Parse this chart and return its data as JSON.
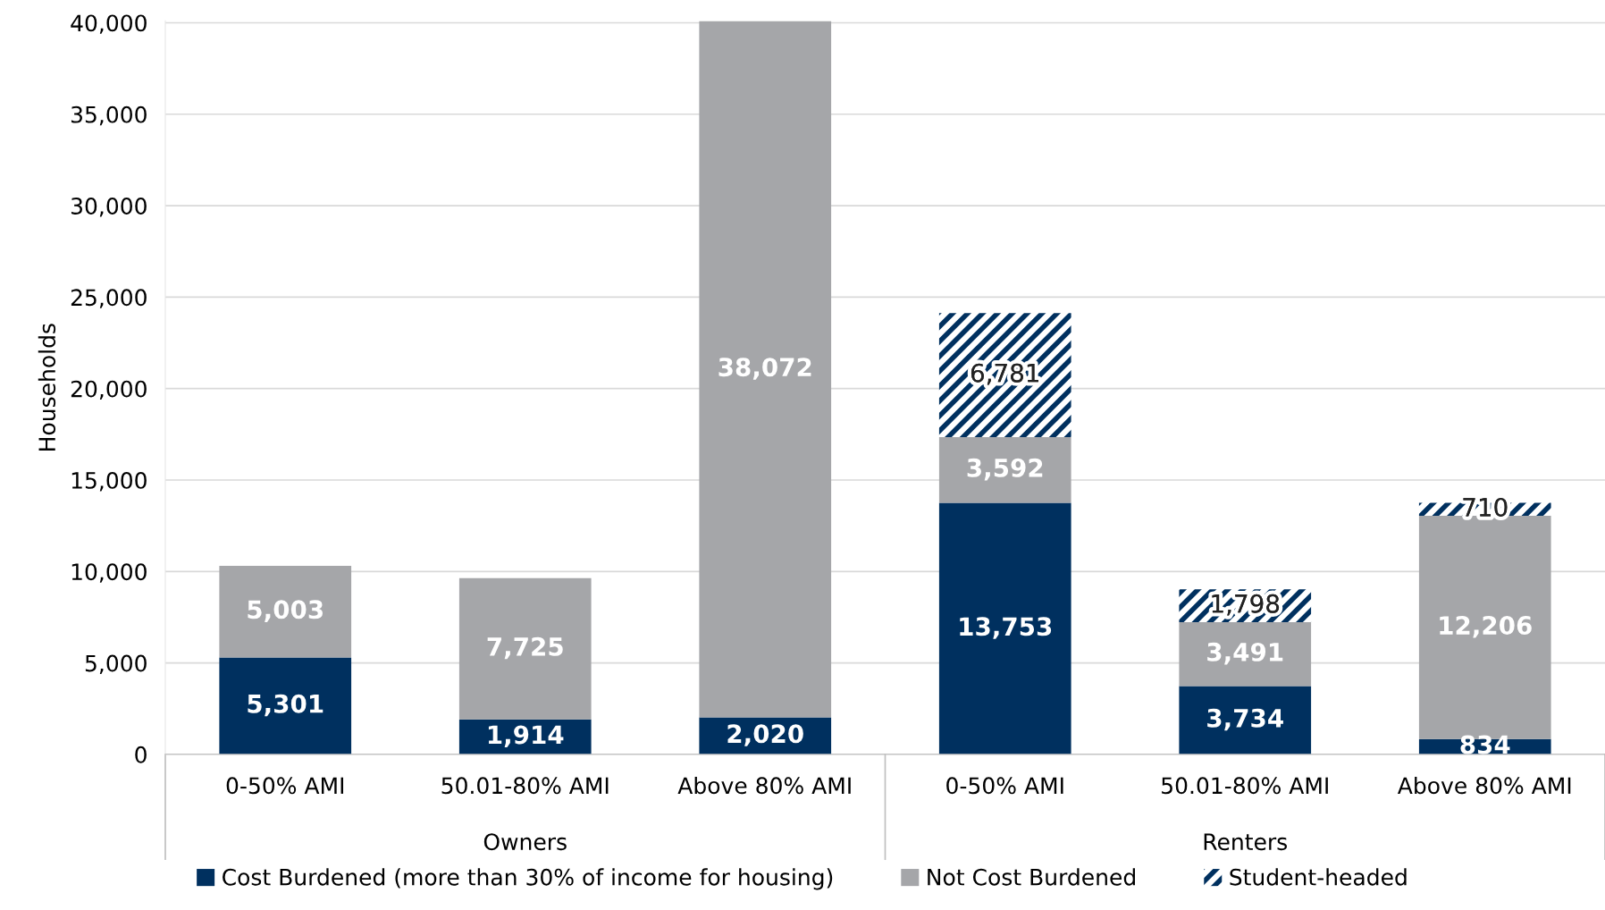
{
  "chart_data": {
    "type": "bar",
    "stacked": true,
    "ylabel": "Households",
    "categories": [
      "0-50% AMI",
      "50.01-80% AMI",
      "Above 80% AMI",
      "0-50% AMI",
      "50.01-80% AMI",
      "Above 80% AMI"
    ],
    "series": [
      {
        "name": "Cost Burdened (more than 30% of income for housing)",
        "color": "#00305f",
        "values": [
          5301,
          1914,
          2020,
          13753,
          3734,
          834
        ],
        "value_labels": [
          "5,301",
          "1,914",
          "2,020",
          "13,753",
          "3,734",
          "834"
        ]
      },
      {
        "name": "Not Cost Burdened",
        "color": "#a5a6a9",
        "values": [
          5003,
          7725,
          38072,
          3592,
          3491,
          12206
        ],
        "value_labels": [
          "5,003",
          "7,725",
          "38,072",
          "3,592",
          "3,491",
          "12,206"
        ]
      },
      {
        "name": "Student-headed",
        "color": "#00305f",
        "values": [
          null,
          null,
          null,
          6781,
          1798,
          710
        ],
        "value_labels": [
          null,
          null,
          null,
          "6,781",
          "1,798",
          "710"
        ]
      }
    ],
    "ylim": [
      0,
      40100
    ],
    "yticks": [
      0,
      {
        "value": 5000,
        "label": "5,000"
      },
      {
        "value": 10000,
        "label": "10,000"
      },
      {
        "value": 15000,
        "label": "15,000"
      },
      {
        "value": 20000,
        "label": "20,000"
      },
      {
        "value": 25000,
        "label": "25,000"
      },
      {
        "value": 30000,
        "label": "30,000"
      },
      {
        "value": 35000,
        "label": "35,000"
      },
      {
        "value": 40000,
        "label": "40,000"
      }
    ],
    "grid": "y",
    "legend": "bottom",
    "annotations": [
      "Owners",
      "Renters"
    ]
  }
}
